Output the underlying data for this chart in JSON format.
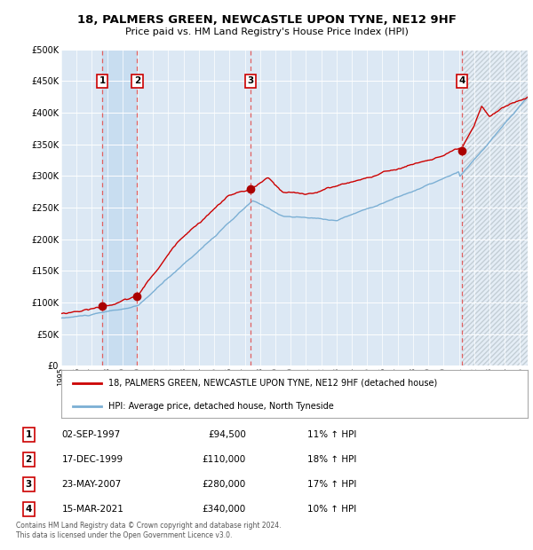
{
  "title_line1": "18, PALMERS GREEN, NEWCASTLE UPON TYNE, NE12 9HF",
  "title_line2": "Price paid vs. HM Land Registry's House Price Index (HPI)",
  "ylabel_ticks": [
    "£0",
    "£50K",
    "£100K",
    "£150K",
    "£200K",
    "£250K",
    "£300K",
    "£350K",
    "£400K",
    "£450K",
    "£500K"
  ],
  "ytick_values": [
    0,
    50000,
    100000,
    150000,
    200000,
    250000,
    300000,
    350000,
    400000,
    450000,
    500000
  ],
  "xlim_start": 1995.0,
  "xlim_end": 2025.5,
  "ylim_min": 0,
  "ylim_max": 500000,
  "transactions": [
    {
      "num": 1,
      "date_x": 1997.67,
      "price": 94500,
      "label": "02-SEP-1997",
      "price_str": "£94,500",
      "hpi_str": "11% ↑ HPI"
    },
    {
      "num": 2,
      "date_x": 1999.96,
      "price": 110000,
      "label": "17-DEC-1999",
      "price_str": "£110,000",
      "hpi_str": "18% ↑ HPI"
    },
    {
      "num": 3,
      "date_x": 2007.39,
      "price": 280000,
      "label": "23-MAY-2007",
      "price_str": "£280,000",
      "hpi_str": "17% ↑ HPI"
    },
    {
      "num": 4,
      "date_x": 2021.21,
      "price": 340000,
      "label": "15-MAR-2021",
      "price_str": "£340,000",
      "hpi_str": "10% ↑ HPI"
    }
  ],
  "hpi_color": "#7bafd4",
  "price_color": "#cc0000",
  "dot_color": "#aa0000",
  "vline_color": "#e06060",
  "bg_color": "#dce8f4",
  "highlight_color": "#c8ddf0",
  "legend_line1": "18, PALMERS GREEN, NEWCASTLE UPON TYNE, NE12 9HF (detached house)",
  "legend_line2": "HPI: Average price, detached house, North Tyneside",
  "footer": "Contains HM Land Registry data © Crown copyright and database right 2024.\nThis data is licensed under the Open Government Licence v3.0.",
  "hatch_color": "#b0bec8",
  "last_vline_x": 2021.21,
  "highlight_span": [
    1997.67,
    1999.96
  ]
}
